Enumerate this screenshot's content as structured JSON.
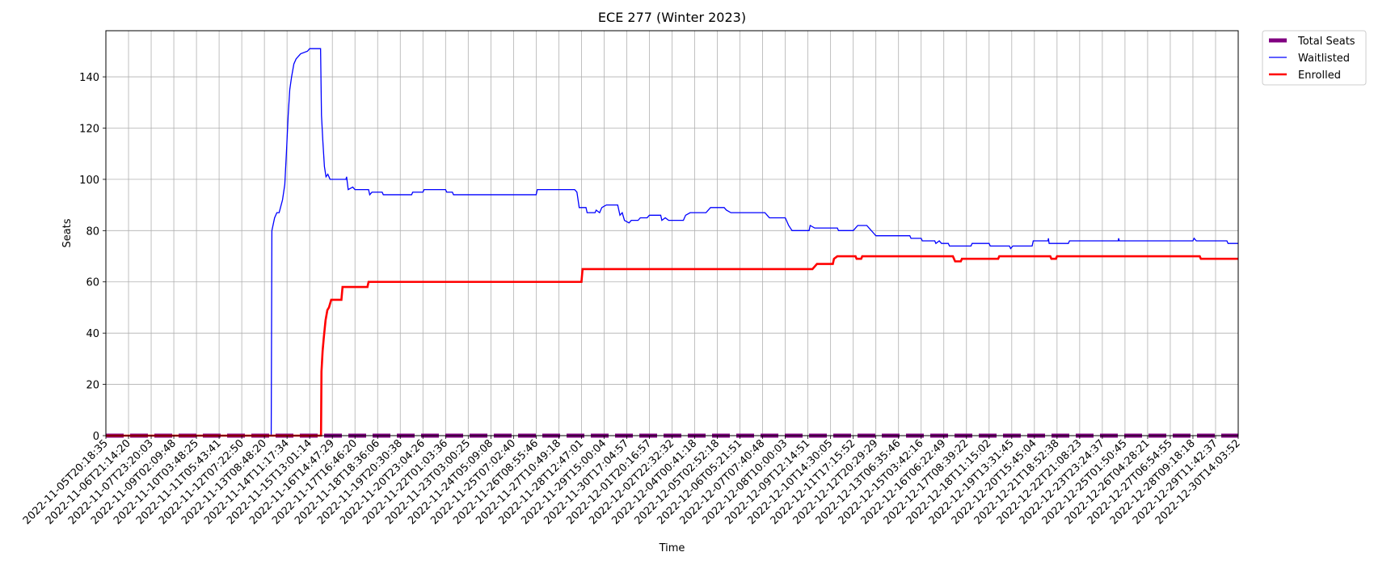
{
  "chart_data": {
    "type": "line",
    "title": "ECE 277 (Winter 2023)",
    "xlabel": "Time",
    "ylabel": "Seats",
    "ylim": [
      0,
      158
    ],
    "yticks": [
      0,
      20,
      40,
      60,
      80,
      100,
      120,
      140
    ],
    "grid": true,
    "legend_position": "outside top-right",
    "x_tick_labels": [
      "2022-11-05T20:18:35",
      "2022-11-06T21:14:20",
      "2022-11-07T23:20:03",
      "2022-11-09T02:09:48",
      "2022-11-10T03:48:25",
      "2022-11-11T05:43:41",
      "2022-11-12T07:22:50",
      "2022-11-13T08:48:20",
      "2022-11-14T11:17:34",
      "2022-11-15T13:01:14",
      "2022-11-16T14:47:29",
      "2022-11-17T16:46:20",
      "2022-11-18T18:36:06",
      "2022-11-19T20:30:38",
      "2022-11-20T23:04:26",
      "2022-11-22T01:03:36",
      "2022-11-23T03:00:25",
      "2022-11-24T05:09:08",
      "2022-11-25T07:02:40",
      "2022-11-26T08:55:46",
      "2022-11-27T10:49:18",
      "2022-11-28T12:47:01",
      "2022-11-29T15:00:04",
      "2022-11-30T17:04:57",
      "2022-12-01T20:16:57",
      "2022-12-02T22:32:32",
      "2022-12-04T00:41:18",
      "2022-12-05T02:52:18",
      "2022-12-06T05:21:51",
      "2022-12-07T07:40:48",
      "2022-12-08T10:00:03",
      "2022-12-09T12:14:51",
      "2022-12-10T14:30:05",
      "2022-12-11T17:15:52",
      "2022-12-12T20:29:29",
      "2022-12-13T06:35:46",
      "2022-12-15T03:42:16",
      "2022-12-16T06:22:49",
      "2022-12-17T08:39:22",
      "2022-12-18T11:15:02",
      "2022-12-19T13:31:45",
      "2022-12-20T15:45:04",
      "2022-12-21T18:52:38",
      "2022-12-22T21:08:23",
      "2022-12-23T23:24:37",
      "2022-12-25T01:50:45",
      "2022-12-26T04:28:21",
      "2022-12-27T06:54:55",
      "2022-12-28T09:18:18",
      "2022-12-29T11:42:37",
      "2022-12-30T14:03:52"
    ],
    "series": [
      {
        "name": "Total Seats",
        "color": "#800080",
        "style": "dashed",
        "points": [
          [
            0,
            0
          ],
          [
            50,
            0
          ]
        ]
      },
      {
        "name": "Waitlisted",
        "color": "#0000ff",
        "style": "solid",
        "points": [
          [
            0,
            0
          ],
          [
            7.3,
            0
          ],
          [
            7.33,
            80
          ],
          [
            7.45,
            85
          ],
          [
            7.55,
            87
          ],
          [
            7.65,
            87
          ],
          [
            7.8,
            92
          ],
          [
            7.9,
            98
          ],
          [
            7.97,
            110
          ],
          [
            8.05,
            125
          ],
          [
            8.12,
            135
          ],
          [
            8.2,
            140
          ],
          [
            8.3,
            145
          ],
          [
            8.4,
            147
          ],
          [
            8.5,
            148
          ],
          [
            8.6,
            149
          ],
          [
            8.9,
            150
          ],
          [
            9.0,
            151
          ],
          [
            9.4,
            151
          ],
          [
            9.48,
            151
          ],
          [
            9.52,
            125
          ],
          [
            9.58,
            115
          ],
          [
            9.65,
            105
          ],
          [
            9.72,
            101
          ],
          [
            9.8,
            102
          ],
          [
            9.9,
            100
          ],
          [
            10.0,
            100
          ],
          [
            10.6,
            100
          ],
          [
            10.63,
            101
          ],
          [
            10.7,
            96
          ],
          [
            10.9,
            97
          ],
          [
            11.0,
            96
          ],
          [
            11.6,
            96
          ],
          [
            11.65,
            94
          ],
          [
            11.75,
            95
          ],
          [
            12.2,
            95
          ],
          [
            12.25,
            94
          ],
          [
            13.5,
            94
          ],
          [
            13.55,
            95
          ],
          [
            14.0,
            95
          ],
          [
            14.05,
            96
          ],
          [
            15.0,
            96
          ],
          [
            15.05,
            95
          ],
          [
            15.3,
            95
          ],
          [
            15.35,
            94
          ],
          [
            19.0,
            94
          ],
          [
            19.05,
            96
          ],
          [
            20.7,
            96
          ],
          [
            20.8,
            95
          ],
          [
            20.9,
            89
          ],
          [
            21.2,
            89
          ],
          [
            21.25,
            87
          ],
          [
            21.6,
            87
          ],
          [
            21.65,
            88
          ],
          [
            21.8,
            87
          ],
          [
            21.9,
            89
          ],
          [
            22.1,
            90
          ],
          [
            22.6,
            90
          ],
          [
            22.7,
            86
          ],
          [
            22.8,
            87
          ],
          [
            22.9,
            84
          ],
          [
            23.1,
            83
          ],
          [
            23.2,
            84
          ],
          [
            23.5,
            84
          ],
          [
            23.6,
            85
          ],
          [
            23.9,
            85
          ],
          [
            24.0,
            86
          ],
          [
            24.5,
            86
          ],
          [
            24.55,
            84
          ],
          [
            24.7,
            85
          ],
          [
            24.85,
            84
          ],
          [
            25.5,
            84
          ],
          [
            25.6,
            86
          ],
          [
            25.8,
            87
          ],
          [
            26.5,
            87
          ],
          [
            26.6,
            88
          ],
          [
            26.7,
            89
          ],
          [
            27.3,
            89
          ],
          [
            27.4,
            88
          ],
          [
            27.6,
            87
          ],
          [
            29.1,
            87
          ],
          [
            29.2,
            86
          ],
          [
            29.3,
            85
          ],
          [
            30.0,
            85
          ],
          [
            30.05,
            84
          ],
          [
            30.15,
            82
          ],
          [
            30.3,
            80
          ],
          [
            31.05,
            80
          ],
          [
            31.1,
            82
          ],
          [
            31.3,
            81
          ],
          [
            32.3,
            81
          ],
          [
            32.35,
            80
          ],
          [
            33.0,
            80
          ],
          [
            33.1,
            81
          ],
          [
            33.2,
            82
          ],
          [
            33.6,
            82
          ],
          [
            33.7,
            81
          ],
          [
            33.9,
            79
          ],
          [
            34.0,
            78
          ],
          [
            35.5,
            78
          ],
          [
            35.55,
            77
          ],
          [
            36.0,
            77
          ],
          [
            36.05,
            76
          ],
          [
            36.6,
            76
          ],
          [
            36.65,
            75
          ],
          [
            36.8,
            76
          ],
          [
            36.9,
            75
          ],
          [
            37.2,
            75
          ],
          [
            37.25,
            74
          ],
          [
            38.2,
            74
          ],
          [
            38.25,
            75
          ],
          [
            39.0,
            75
          ],
          [
            39.05,
            74
          ],
          [
            39.9,
            74
          ],
          [
            39.95,
            73
          ],
          [
            40.05,
            74
          ],
          [
            40.9,
            74
          ],
          [
            40.95,
            76
          ],
          [
            41.6,
            76
          ],
          [
            41.62,
            77
          ],
          [
            41.65,
            75
          ],
          [
            42.5,
            75
          ],
          [
            42.55,
            76
          ],
          [
            44.7,
            76
          ],
          [
            44.72,
            77
          ],
          [
            44.75,
            76
          ],
          [
            48.0,
            76
          ],
          [
            48.05,
            77
          ],
          [
            48.15,
            76
          ],
          [
            49.5,
            76
          ],
          [
            49.55,
            75
          ],
          [
            50,
            75
          ]
        ]
      },
      {
        "name": "Enrolled",
        "color": "#ff0000",
        "style": "solid",
        "points": [
          [
            0,
            0
          ],
          [
            9.5,
            0
          ],
          [
            9.52,
            25
          ],
          [
            9.57,
            33
          ],
          [
            9.62,
            38
          ],
          [
            9.7,
            45
          ],
          [
            9.78,
            49
          ],
          [
            9.85,
            50
          ],
          [
            9.95,
            53
          ],
          [
            10.4,
            53
          ],
          [
            10.45,
            58
          ],
          [
            11.55,
            58
          ],
          [
            11.6,
            60
          ],
          [
            21.0,
            60
          ],
          [
            21.05,
            65
          ],
          [
            31.2,
            65
          ],
          [
            31.3,
            66
          ],
          [
            31.4,
            67
          ],
          [
            32.1,
            67
          ],
          [
            32.15,
            69
          ],
          [
            32.3,
            70
          ],
          [
            33.1,
            70
          ],
          [
            33.15,
            69
          ],
          [
            33.35,
            69
          ],
          [
            33.4,
            70
          ],
          [
            37.4,
            70
          ],
          [
            37.5,
            68
          ],
          [
            37.75,
            68
          ],
          [
            37.8,
            69
          ],
          [
            39.4,
            69
          ],
          [
            39.45,
            70
          ],
          [
            41.7,
            70
          ],
          [
            41.75,
            69
          ],
          [
            41.95,
            69
          ],
          [
            42.0,
            70
          ],
          [
            48.3,
            70
          ],
          [
            48.35,
            69
          ],
          [
            50,
            69
          ]
        ]
      }
    ]
  }
}
